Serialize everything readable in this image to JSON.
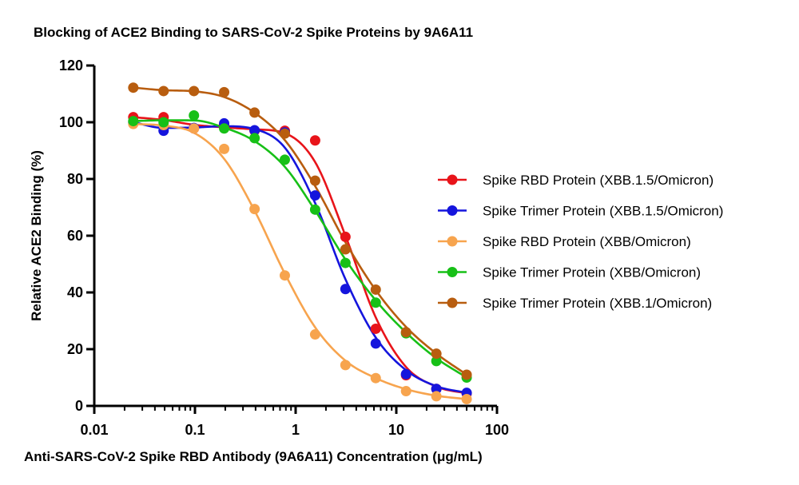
{
  "chart_data": {
    "type": "scatter",
    "title": "Blocking of ACE2 Binding to SARS-CoV-2 Spike Proteins by 9A6A11",
    "xlabel": "Anti-SARS-CoV-2 Spike RBD Antibody (9A6A11) Concentration (μg/mL)",
    "ylabel": "Relative ACE2 Binding (%)",
    "xscale": "log",
    "xlim": [
      0.01,
      100
    ],
    "ylim": [
      0,
      120
    ],
    "x_ticks": [
      "0.01",
      "0.1",
      "1",
      "10",
      "100"
    ],
    "y_ticks": [
      "0",
      "20",
      "40",
      "60",
      "80",
      "100",
      "120"
    ],
    "grid": false,
    "legend_position": "right",
    "fit_curves": true,
    "x": [
      0.0244,
      0.0488,
      0.0977,
      0.195,
      0.391,
      0.781,
      1.5625,
      3.125,
      6.25,
      12.5,
      25,
      50
    ],
    "series": [
      {
        "name": "Spike RBD Protein (XBB.1.5/Omicron)",
        "color": "#e8141a",
        "values": [
          101.8,
          101.8,
          97.8,
          99.0,
          97.0,
          97.0,
          93.6,
          59.6,
          27.2,
          10.8,
          6.0,
          4.4
        ]
      },
      {
        "name": "Spike Trimer Protein (XBB.1.5/Omicron)",
        "color": "#1515dd",
        "values": [
          100.0,
          97.0,
          98.0,
          99.6,
          97.2,
          96.4,
          74.2,
          41.2,
          22.0,
          11.2,
          6.0,
          4.6
        ]
      },
      {
        "name": "Spike RBD Protein (XBB/Omicron)",
        "color": "#f7a44e",
        "values": [
          99.4,
          99.0,
          97.8,
          90.6,
          69.4,
          46.0,
          25.2,
          14.4,
          9.8,
          5.2,
          3.4,
          2.4
        ]
      },
      {
        "name": "Spike Trimer Protein (XBB/Omicron)",
        "color": "#17c017",
        "values": [
          100.4,
          100.0,
          102.4,
          97.8,
          94.4,
          86.8,
          69.2,
          50.4,
          36.4,
          25.6,
          15.8,
          10.0
        ]
      },
      {
        "name": "Spike Trimer Protein (XBB.1/Omicron)",
        "color": "#b85d0f",
        "values": [
          112.2,
          111.0,
          111.0,
          110.6,
          103.4,
          96.0,
          79.4,
          55.2,
          41.0,
          26.0,
          18.4,
          11.0
        ]
      }
    ]
  }
}
